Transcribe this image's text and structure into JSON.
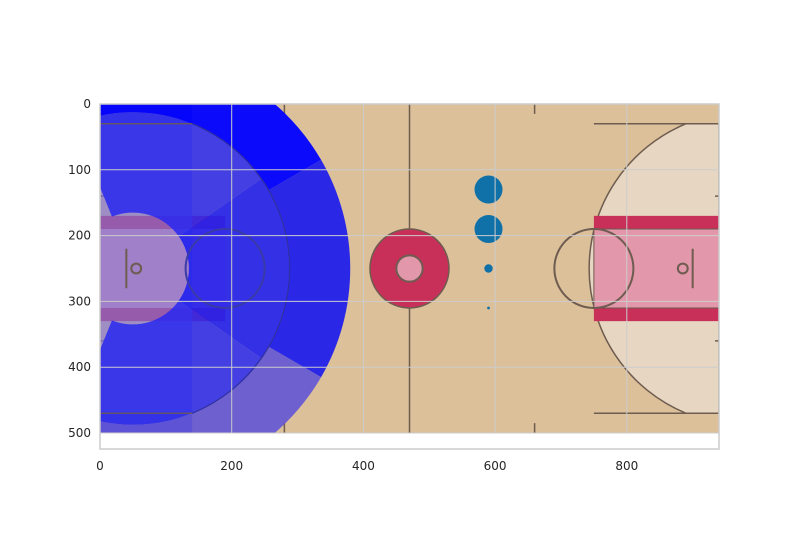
{
  "chart_data": {
    "type": "scatter",
    "xlim": [
      0,
      940
    ],
    "ylim": [
      500,
      0
    ],
    "x_ticks": [
      0,
      200,
      400,
      600,
      800
    ],
    "y_ticks": [
      0,
      100,
      200,
      300,
      400,
      500
    ],
    "x_tick_labels": [
      "0",
      "200",
      "400",
      "600",
      "800"
    ],
    "y_tick_labels": [
      "0",
      "100",
      "200",
      "300",
      "400",
      "500"
    ],
    "grid": true,
    "background": "court",
    "zones": [
      {
        "region": "left corner top",
        "color": "#5a4fd0",
        "opacity": 0.75
      },
      {
        "region": "left corner bottom",
        "color": "#5a4fd0",
        "opacity": 0.75
      },
      {
        "region": "left wing short",
        "color": "#7d73d8",
        "opacity": 0.65
      },
      {
        "region": "paint",
        "color": "#e4a8c0",
        "opacity": 0.55
      },
      {
        "region": "mid-range top",
        "color": "#2828f0",
        "opacity": 0.85
      },
      {
        "region": "mid-range center",
        "color": "#2020ee",
        "opacity": 0.9
      },
      {
        "region": "mid-range bottom",
        "color": "#2828f0",
        "opacity": 0.85
      },
      {
        "region": "three top",
        "color": "#0000ff",
        "opacity": 0.95
      },
      {
        "region": "three center",
        "color": "#1a1aee",
        "opacity": 0.92
      },
      {
        "region": "three bottom",
        "color": "#5a4fd8",
        "opacity": 0.85
      }
    ],
    "points": [
      {
        "x": 590,
        "y": 130,
        "size": 20
      },
      {
        "x": 590,
        "y": 190,
        "size": 20
      },
      {
        "x": 590,
        "y": 250,
        "size": 6
      },
      {
        "x": 590,
        "y": 310,
        "size": 2
      }
    ],
    "point_color": "#1070a8",
    "colors": {
      "court": "#dcc09a",
      "court_light": "#e7d7c2",
      "paint": "#c8305a",
      "paint_light": "#e397aa",
      "line": "#6e5c50"
    }
  }
}
